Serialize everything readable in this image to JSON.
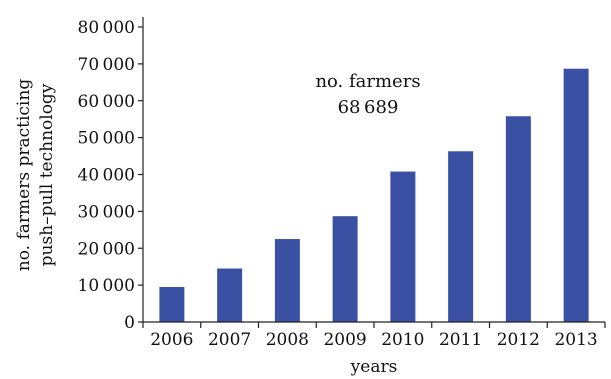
{
  "chart_data": {
    "type": "bar",
    "categories": [
      "2006",
      "2007",
      "2008",
      "2009",
      "2010",
      "2011",
      "2012",
      "2013"
    ],
    "values": [
      9500,
      14500,
      22500,
      28700,
      40800,
      46300,
      55800,
      68689
    ],
    "xlabel": "years",
    "ylabel_lines": [
      "no. farmers practicing",
      "push–pull technology"
    ],
    "ylim": [
      0,
      80000
    ],
    "yticks": [
      0,
      10000,
      20000,
      30000,
      40000,
      50000,
      60000,
      70000,
      80000
    ],
    "ytick_labels": [
      "0",
      "10 000",
      "20 000",
      "30 000",
      "40 000",
      "50 000",
      "60 000",
      "70 000",
      "80 000"
    ],
    "annotation_lines": [
      "no. farmers",
      "68 689"
    ],
    "grid": false,
    "bar_color": "#3a51a3"
  }
}
